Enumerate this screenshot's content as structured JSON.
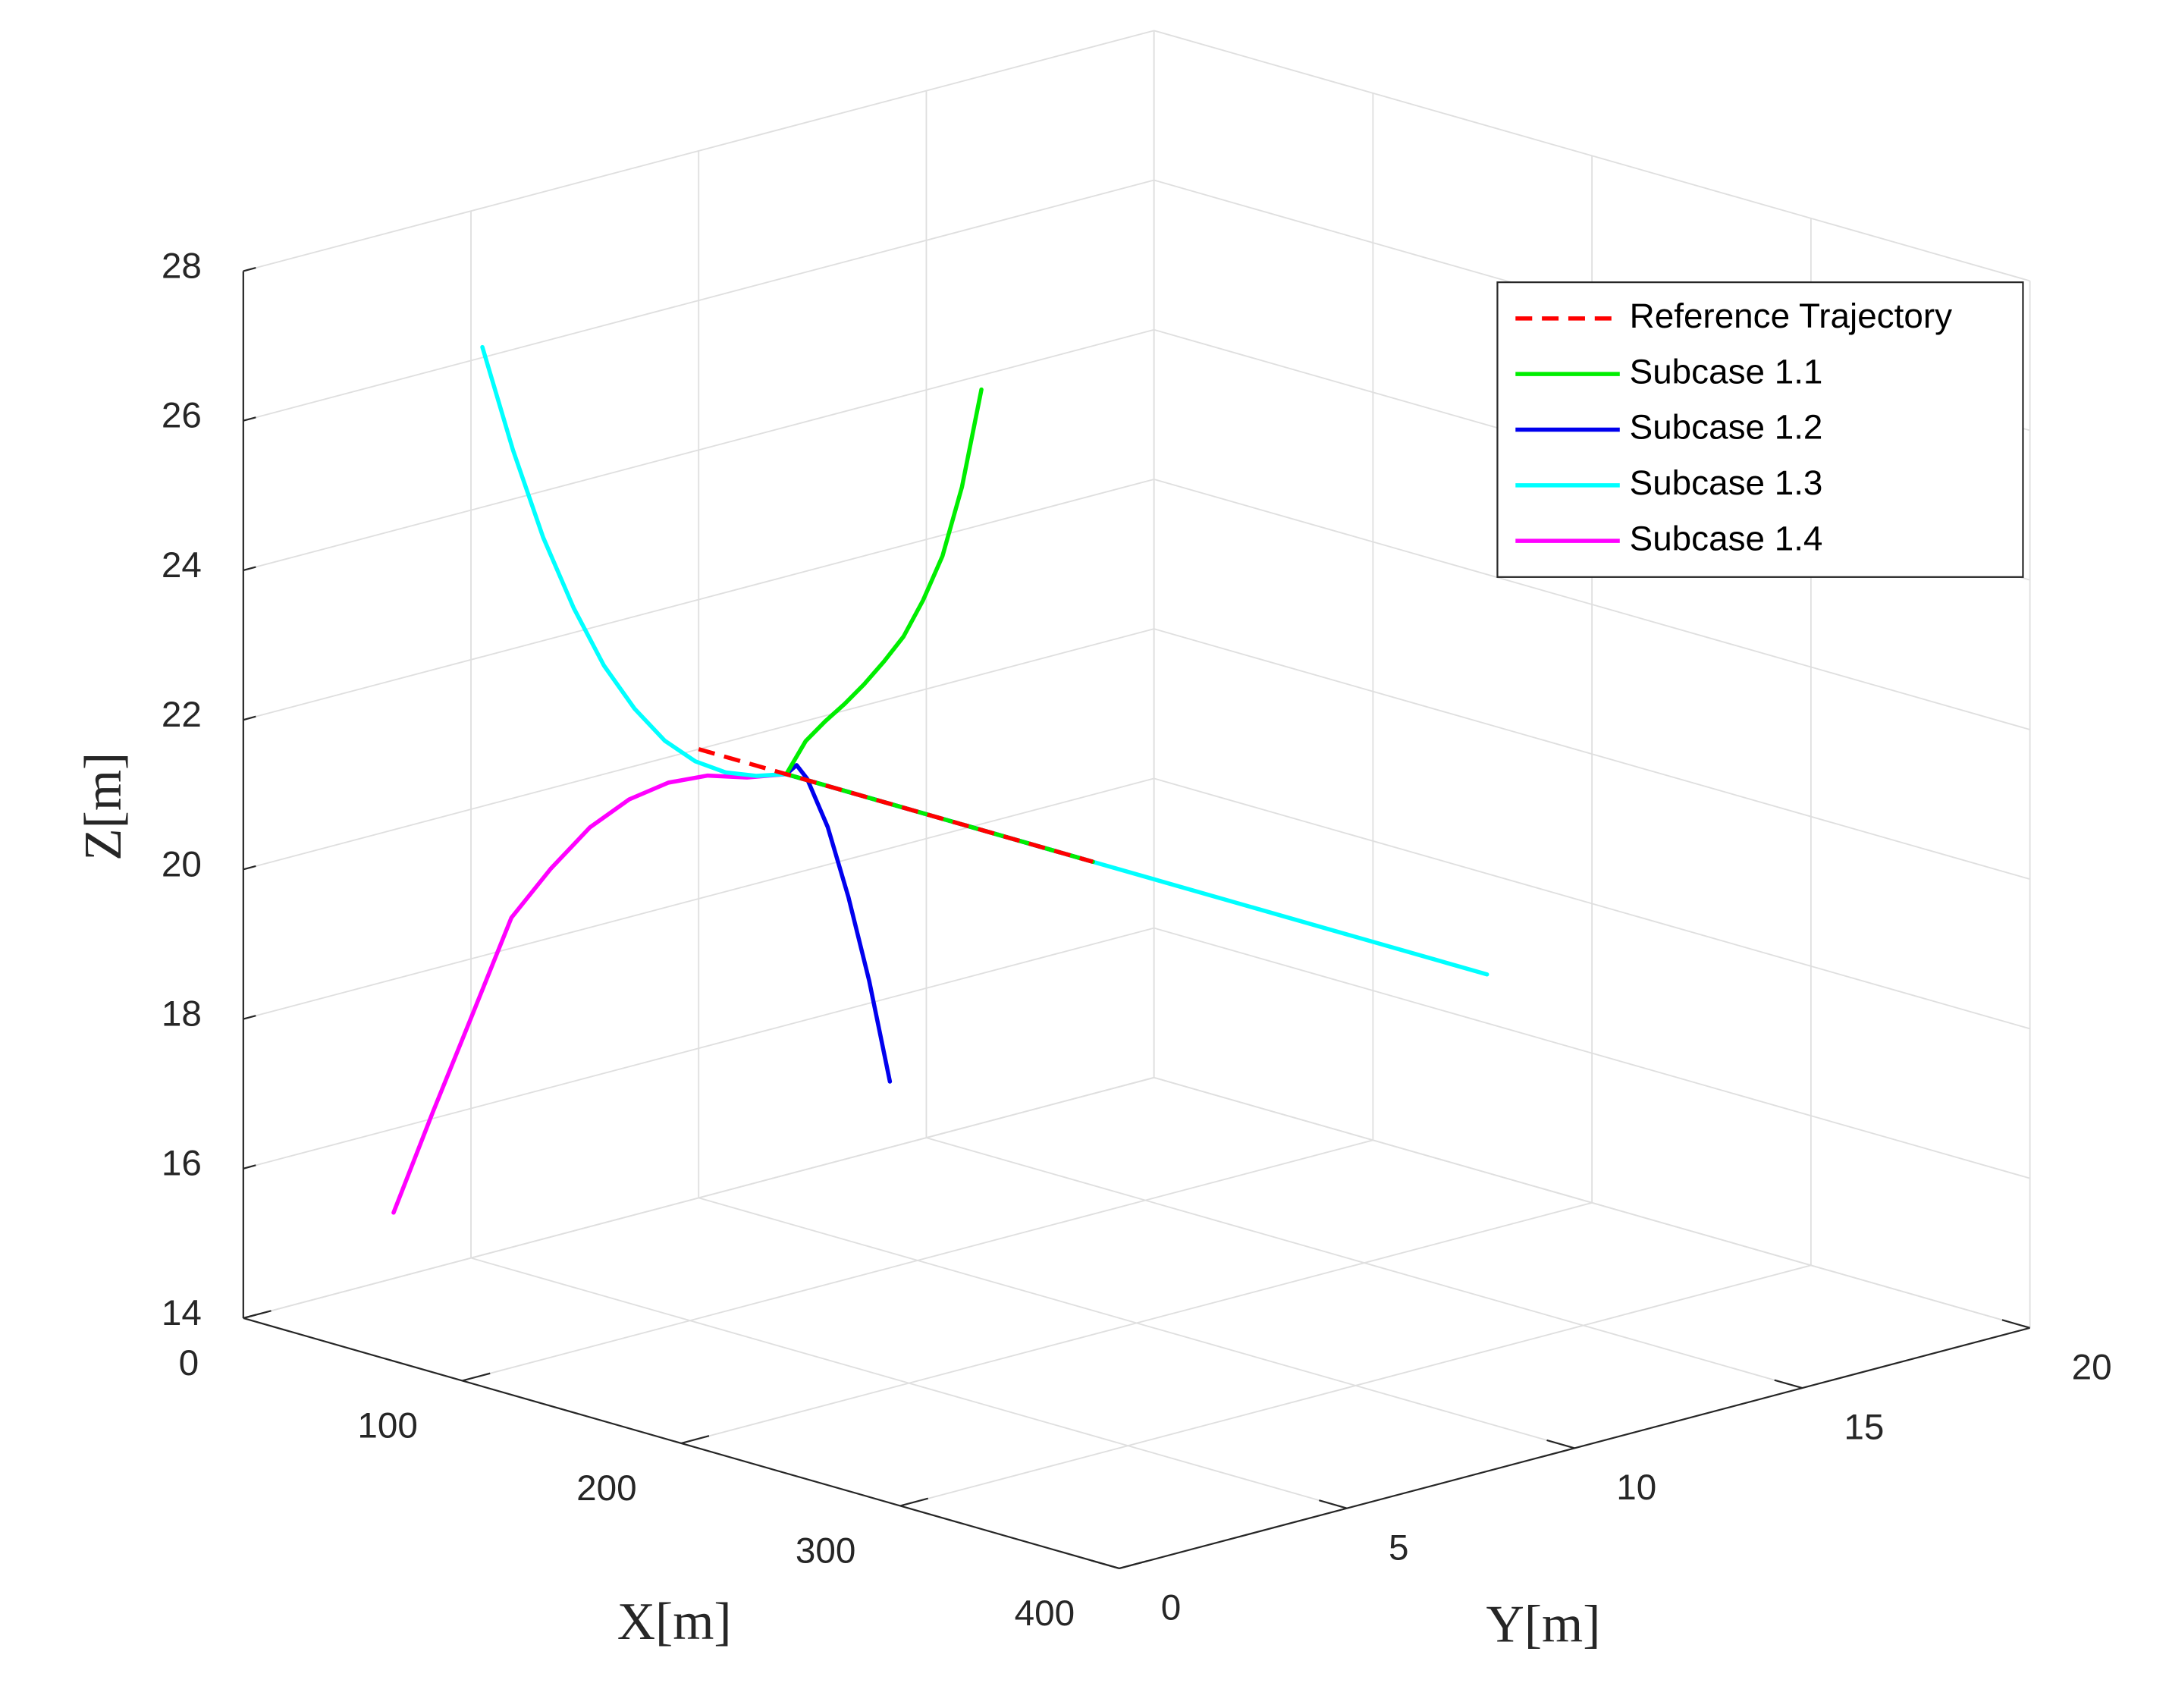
{
  "chart_data": {
    "type": "line",
    "xlabel": "X[m]",
    "ylabel": "Y[m]",
    "zlabel": "Z[m]",
    "xlim": [
      0,
      400
    ],
    "ylim": [
      0,
      20
    ],
    "zlim": [
      14,
      28
    ],
    "xticks": [
      0,
      100,
      200,
      300,
      400
    ],
    "yticks": [
      0,
      5,
      10,
      15,
      20
    ],
    "zticks": [
      14,
      16,
      18,
      20,
      22,
      24,
      26,
      28
    ],
    "grid": true,
    "legend": "northeast",
    "series": [
      {
        "name": "Reference Trajectory",
        "color": "#ff0000",
        "linestyle": "dashed",
        "x": [
          0,
          180
        ],
        "y": [
          10,
          10
        ],
        "z": [
          20,
          20
        ]
      },
      {
        "name": "Subcase 1.1",
        "color": "#00ee00",
        "linestyle": "solid",
        "x": [
          0,
          4,
          8,
          12,
          16,
          20,
          24,
          28,
          32,
          36,
          40,
          180
        ],
        "y": [
          16.21,
          15.59,
          14.97,
          14.35,
          13.73,
          13.11,
          12.48,
          11.86,
          11.24,
          10.62,
          10,
          10
        ],
        "z": [
          23.81,
          22.64,
          21.85,
          21.39,
          21.04,
          20.84,
          20.67,
          20.54,
          20.44,
          20.31,
          20,
          20
        ]
      },
      {
        "name": "Subcase 1.2",
        "color": "#0000ee",
        "linestyle": "solid",
        "x": [
          0,
          8,
          16,
          24,
          32,
          36,
          40,
          180
        ],
        "y": [
          14.2,
          13.36,
          12.52,
          11.68,
          10.84,
          10.42,
          10,
          10
        ],
        "z": [
          14.88,
          16.43,
          17.75,
          18.89,
          19.74,
          20.02,
          20,
          20
        ]
      },
      {
        "name": "Subcase 1.3",
        "color": "#00ffff",
        "linestyle": "solid",
        "x": [
          0,
          4,
          8,
          12,
          16,
          20,
          24,
          28,
          32,
          36,
          40,
          360
        ],
        "y": [
          5.25,
          5.73,
          6.2,
          6.68,
          7.15,
          7.63,
          8.1,
          8.58,
          9.05,
          9.53,
          10,
          10
        ],
        "z": [
          26.14,
          24.72,
          23.51,
          22.52,
          21.71,
          21.09,
          20.62,
          20.3,
          20.11,
          20.02,
          20,
          20
        ]
      },
      {
        "name": "Subcase 1.4",
        "color": "#ff00ff",
        "linestyle": "solid",
        "x": [
          0,
          4,
          8,
          12,
          16,
          20,
          24,
          28,
          32,
          36,
          40,
          180
        ],
        "y": [
          3.3,
          3.97,
          4.64,
          5.31,
          5.98,
          6.65,
          7.32,
          7.99,
          8.66,
          9.33,
          10,
          10
        ],
        "z": [
          14.88,
          16.15,
          17.37,
          18.6,
          19.18,
          19.66,
          19.96,
          20.11,
          20.13,
          20.03,
          20,
          20
        ]
      }
    ]
  }
}
